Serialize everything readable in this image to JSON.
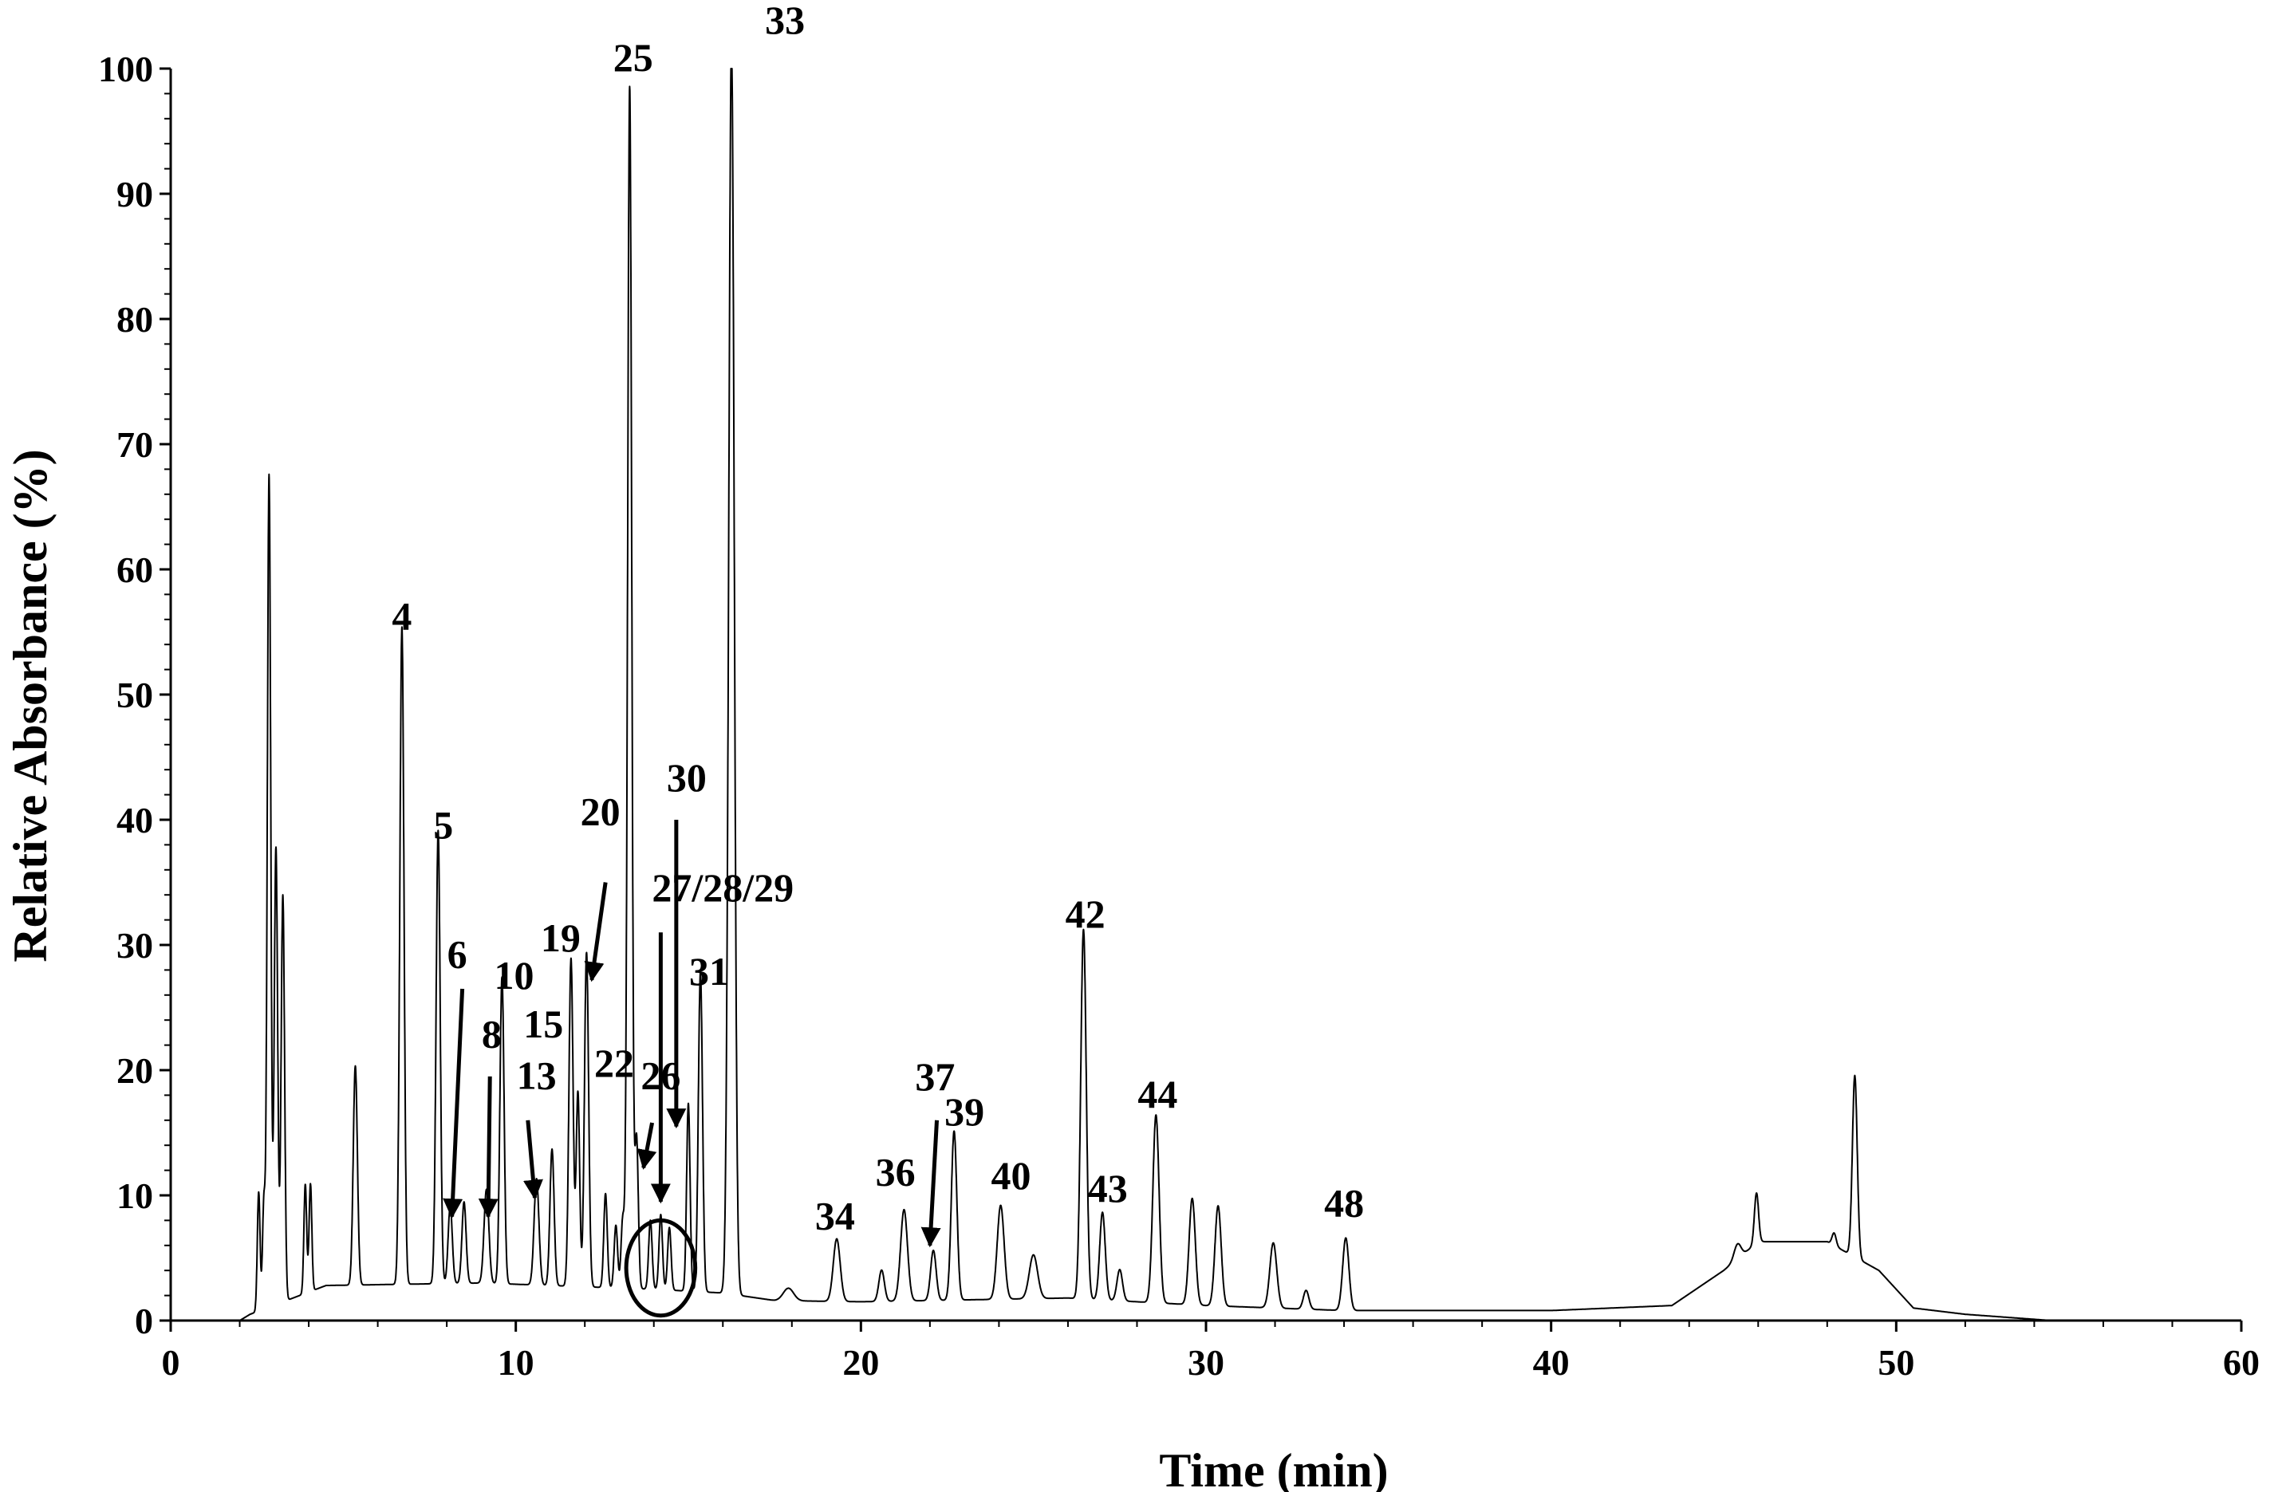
{
  "chart_data": {
    "type": "line",
    "title": "",
    "xlabel": "Time (min)",
    "ylabel": "Relative Absorbance (%)",
    "xlim": [
      0,
      60
    ],
    "ylim": [
      0,
      100
    ],
    "x_ticks": [
      0,
      10,
      20,
      30,
      40,
      50,
      60
    ],
    "y_ticks": [
      0,
      10,
      20,
      30,
      40,
      50,
      60,
      70,
      80,
      90,
      100
    ],
    "grid": false,
    "baseline": [
      [
        0,
        0
      ],
      [
        2.0,
        0
      ],
      [
        2.3,
        0.5
      ],
      [
        4.5,
        2.8
      ],
      [
        9,
        3
      ],
      [
        14,
        2.5
      ],
      [
        16,
        2.2
      ],
      [
        17.5,
        1.6
      ],
      [
        20,
        1.5
      ],
      [
        26,
        1.8
      ],
      [
        30,
        1.2
      ],
      [
        34,
        0.8
      ],
      [
        40,
        0.8
      ],
      [
        43.5,
        1.2
      ],
      [
        45,
        4
      ],
      [
        46,
        6.3
      ],
      [
        48,
        6.3
      ],
      [
        49.5,
        4
      ],
      [
        50.5,
        1
      ],
      [
        52,
        0.5
      ],
      [
        54.5,
        0
      ],
      [
        60,
        0
      ]
    ],
    "peaks": [
      {
        "t": 2.55,
        "h": 9.5,
        "w": 0.04
      },
      {
        "t": 2.7,
        "h": 8.5,
        "w": 0.04
      },
      {
        "t": 2.85,
        "h": 66.5,
        "w": 0.05
      },
      {
        "t": 3.05,
        "h": 36.5,
        "w": 0.05
      },
      {
        "t": 3.25,
        "h": 32.5,
        "w": 0.05
      },
      {
        "t": 3.9,
        "h": 8.7,
        "w": 0.04
      },
      {
        "t": 4.05,
        "h": 8.6,
        "w": 0.04
      },
      {
        "t": 5.35,
        "h": 17.5,
        "w": 0.06
      },
      {
        "t": 6.7,
        "h": 52.5,
        "w": 0.06
      },
      {
        "t": 7.75,
        "h": 36.2,
        "w": 0.06
      },
      {
        "t": 8.1,
        "h": 6.2,
        "w": 0.06
      },
      {
        "t": 8.5,
        "h": 6.5,
        "w": 0.06
      },
      {
        "t": 9.15,
        "h": 7.5,
        "w": 0.07
      },
      {
        "t": 9.6,
        "h": 24.5,
        "w": 0.06
      },
      {
        "t": 10.6,
        "h": 8.5,
        "w": 0.07
      },
      {
        "t": 11.05,
        "h": 10.9,
        "w": 0.06
      },
      {
        "t": 11.6,
        "h": 26.2,
        "w": 0.06
      },
      {
        "t": 11.8,
        "h": 15.5,
        "w": 0.05
      },
      {
        "t": 12.05,
        "h": 26.7,
        "w": 0.06
      },
      {
        "t": 12.6,
        "h": 7.5,
        "w": 0.05
      },
      {
        "t": 12.9,
        "h": 5,
        "w": 0.05
      },
      {
        "t": 13.1,
        "h": 5.5,
        "w": 0.05
      },
      {
        "t": 13.3,
        "h": 96,
        "w": 0.06
      },
      {
        "t": 13.5,
        "h": 12,
        "w": 0.05
      },
      {
        "t": 13.9,
        "h": 5.5,
        "w": 0.05
      },
      {
        "t": 14.2,
        "h": 6,
        "w": 0.05
      },
      {
        "t": 14.45,
        "h": 5,
        "w": 0.05
      },
      {
        "t": 15.0,
        "h": 15,
        "w": 0.05
      },
      {
        "t": 15.35,
        "h": 25.5,
        "w": 0.06
      },
      {
        "t": 16.25,
        "h": 100,
        "w": 0.08
      },
      {
        "t": 17.9,
        "h": 1,
        "w": 0.15
      },
      {
        "t": 19.3,
        "h": 5,
        "w": 0.1
      },
      {
        "t": 20.6,
        "h": 2.5,
        "w": 0.08
      },
      {
        "t": 21.25,
        "h": 7.3,
        "w": 0.1
      },
      {
        "t": 22.1,
        "h": 4,
        "w": 0.08
      },
      {
        "t": 22.7,
        "h": 13.5,
        "w": 0.08
      },
      {
        "t": 24.05,
        "h": 7.5,
        "w": 0.1
      },
      {
        "t": 25.0,
        "h": 3.5,
        "w": 0.12
      },
      {
        "t": 26.45,
        "h": 29.5,
        "w": 0.08
      },
      {
        "t": 27.0,
        "h": 7,
        "w": 0.08
      },
      {
        "t": 27.5,
        "h": 2.5,
        "w": 0.08
      },
      {
        "t": 28.55,
        "h": 15,
        "w": 0.09
      },
      {
        "t": 29.6,
        "h": 8.5,
        "w": 0.09
      },
      {
        "t": 30.35,
        "h": 8,
        "w": 0.09
      },
      {
        "t": 31.95,
        "h": 5.2,
        "w": 0.1
      },
      {
        "t": 32.9,
        "h": 1.5,
        "w": 0.08
      },
      {
        "t": 34.05,
        "h": 5.8,
        "w": 0.09
      },
      {
        "t": 45.4,
        "h": 1.2,
        "w": 0.1
      },
      {
        "t": 45.95,
        "h": 4,
        "w": 0.06
      },
      {
        "t": 48.2,
        "h": 1,
        "w": 0.06
      },
      {
        "t": 48.8,
        "h": 14.5,
        "w": 0.07
      }
    ],
    "annotations": [
      {
        "text": "33",
        "x": 17.8,
        "y": 102.8
      },
      {
        "text": "25",
        "x": 13.4,
        "y": 99.8
      },
      {
        "text": "4",
        "x": 6.7,
        "y": 55.2
      },
      {
        "text": "5",
        "x": 7.9,
        "y": 38.5
      },
      {
        "text": "30",
        "x": 14.95,
        "y": 42.3
      },
      {
        "text": "20",
        "x": 12.45,
        "y": 39.6
      },
      {
        "text": "27/28/29",
        "x": 16.0,
        "y": 33.5
      },
      {
        "text": "19",
        "x": 11.3,
        "y": 29.5
      },
      {
        "text": "6",
        "x": 8.3,
        "y": 28.2
      },
      {
        "text": "42",
        "x": 26.5,
        "y": 31.4
      },
      {
        "text": "31",
        "x": 15.6,
        "y": 26.8
      },
      {
        "text": "10",
        "x": 9.95,
        "y": 26.5
      },
      {
        "text": "8",
        "x": 9.3,
        "y": 21.8
      },
      {
        "text": "15",
        "x": 10.8,
        "y": 22.6
      },
      {
        "text": "22",
        "x": 12.85,
        "y": 19.5
      },
      {
        "text": "37",
        "x": 22.15,
        "y": 18.4
      },
      {
        "text": "26",
        "x": 14.2,
        "y": 18.5
      },
      {
        "text": "13",
        "x": 10.6,
        "y": 18.5
      },
      {
        "text": "44",
        "x": 28.6,
        "y": 17.0
      },
      {
        "text": "39",
        "x": 23.0,
        "y": 15.6
      },
      {
        "text": "36",
        "x": 21.0,
        "y": 10.8
      },
      {
        "text": "40",
        "x": 24.35,
        "y": 10.5
      },
      {
        "text": "43",
        "x": 27.15,
        "y": 9.5
      },
      {
        "text": "48",
        "x": 34.0,
        "y": 8.3
      },
      {
        "text": "34",
        "x": 19.25,
        "y": 7.3
      }
    ],
    "arrows": [
      {
        "from": [
          8.45,
          26.5
        ],
        "to": [
          8.15,
          8.3
        ]
      },
      {
        "from": [
          9.25,
          19.5
        ],
        "to": [
          9.2,
          8.3
        ]
      },
      {
        "from": [
          10.35,
          16.0
        ],
        "to": [
          10.55,
          9.8
        ]
      },
      {
        "from": [
          12.6,
          35.0
        ],
        "to": [
          12.2,
          27.2
        ]
      },
      {
        "from": [
          14.65,
          40.0
        ],
        "to": [
          14.65,
          15.5
        ]
      },
      {
        "from": [
          14.2,
          31.0
        ],
        "to": [
          14.2,
          9.5
        ]
      },
      {
        "from": [
          13.95,
          15.8
        ],
        "to": [
          13.7,
          12.2
        ]
      },
      {
        "from": [
          22.2,
          16.0
        ],
        "to": [
          22.0,
          6.0
        ]
      }
    ],
    "circle": {
      "cx": 14.2,
      "cy": 4.2,
      "rx": 1.0,
      "ry": 3.8
    }
  }
}
